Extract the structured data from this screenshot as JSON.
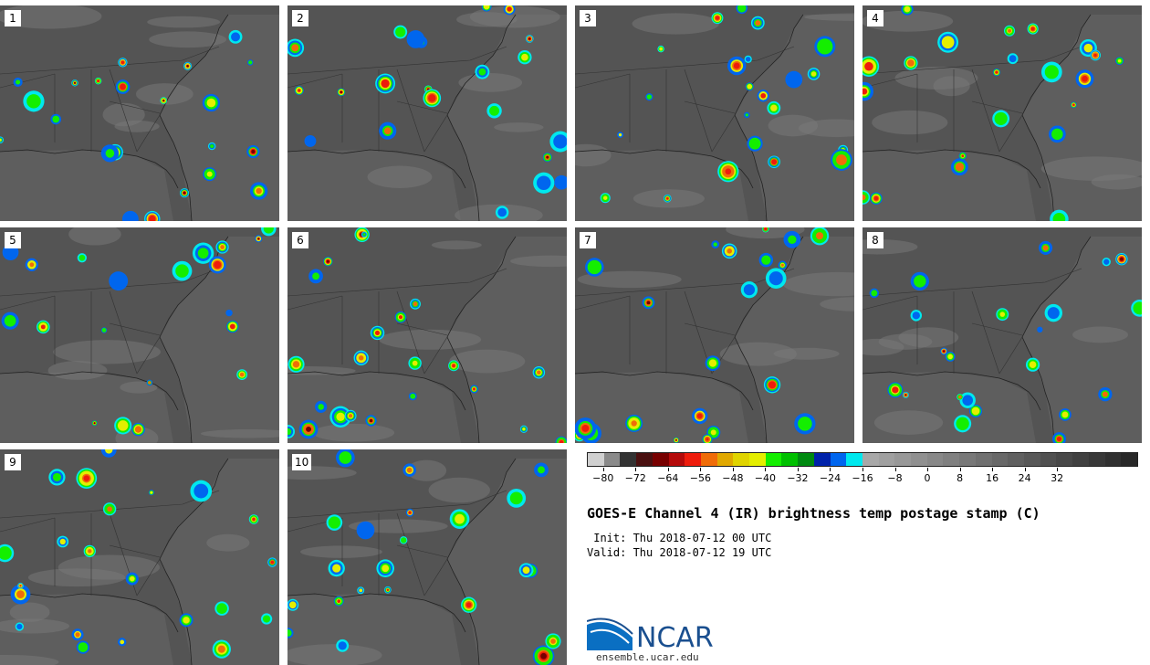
{
  "panels": [
    "1",
    "2",
    "3",
    "4",
    "5",
    "6",
    "7",
    "8",
    "9",
    "10"
  ],
  "colorbar": {
    "colors": [
      "#d0d0d0",
      "#8a8a8a",
      "#333333",
      "#4a1010",
      "#780000",
      "#b40a0a",
      "#ee1c0c",
      "#f06c08",
      "#e0a800",
      "#e0d400",
      "#e4ee00",
      "#14ee00",
      "#00c000",
      "#008a10",
      "#0022aa",
      "#0066ee",
      "#00e8ee",
      "#a8a8a8",
      "#a0a0a0",
      "#989898",
      "#909090",
      "#888888",
      "#808080",
      "#787878",
      "#707070",
      "#686868",
      "#606060",
      "#585858",
      "#505050",
      "#484848",
      "#404040",
      "#383838",
      "#303030",
      "#282828"
    ],
    "ticks": [
      "−80",
      "−72",
      "−64",
      "−56",
      "−48",
      "−40",
      "−32",
      "−24",
      "−16",
      "−8",
      "0",
      "8",
      "16",
      "24",
      "32"
    ]
  },
  "title": "GOES-E Channel 4 (IR) brightness temp postage stamp (C)",
  "init": " Init: Thu 2018-07-12 00 UTC",
  "valid": "Valid: Thu 2018-07-12 19 UTC",
  "logo_text": "NCAR",
  "site": "ensemble.ucar.edu",
  "colors": {
    "land": "#545454",
    "ocean": "#5e5e5e",
    "cloud": "#a0a0a0"
  }
}
